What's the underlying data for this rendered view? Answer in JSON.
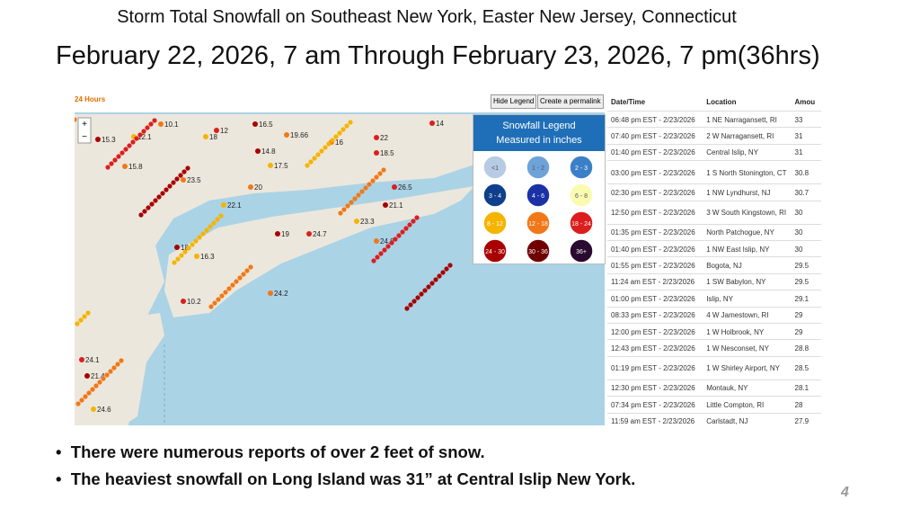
{
  "header": {
    "title": "Storm Total Snowfall on Southeast New York, Easter New Jersey, Connecticut",
    "subtitle": "February 22, 2026, 7 am Through February 23, 2026, 7 pm(36hrs)"
  },
  "map": {
    "period": "24 Hours",
    "buttons": [
      "Hide Legend",
      "Create a permalink"
    ],
    "zoom": [
      "+",
      "−"
    ],
    "labels": [
      "10.1",
      "12",
      "16.5",
      "18",
      "19.66",
      "14",
      "15.3",
      "12.1",
      "16",
      "22",
      "14.8",
      "17.5",
      "23.5",
      "26.5",
      "21.1",
      "23.3",
      "24.8",
      "24.7",
      "18",
      "16.3",
      "24.2",
      "24.1",
      "21.4",
      "24.6",
      "15.8",
      "10.2",
      "19",
      "22.1",
      "20",
      "18.5"
    ]
  },
  "legend": {
    "title": "Snowfall Legend",
    "subtitle": "Measured in inches",
    "items": [
      {
        "label": "<1",
        "color": "#b8cbe4"
      },
      {
        "label": "1 - 2",
        "color": "#6ea3d8"
      },
      {
        "label": "2 - 3",
        "color": "#3b80c6"
      },
      {
        "label": "3 - 4",
        "color": "#0e3f8c"
      },
      {
        "label": "4 - 6",
        "color": "#1a32a6"
      },
      {
        "label": "6 - 8",
        "color": "#fbfbb0"
      },
      {
        "label": "8 - 12",
        "color": "#f5b400"
      },
      {
        "label": "12 - 18",
        "color": "#f07818"
      },
      {
        "label": "18 - 24",
        "color": "#dc1e1e"
      },
      {
        "label": "24 - 30",
        "color": "#a80000"
      },
      {
        "label": "30 - 36",
        "color": "#700000"
      },
      {
        "label": "36+",
        "color": "#2a0a30"
      }
    ]
  },
  "table": {
    "columns": [
      "Date/Time",
      "Location",
      "Amou"
    ],
    "rows": [
      [
        "06:48 pm EST - 2/23/2026",
        "1 NE Narragansett, RI",
        "33"
      ],
      [
        "07:40 pm EST - 2/23/2026",
        "2 W Narragansett, RI",
        "31"
      ],
      [
        "01:40 pm EST - 2/23/2026",
        "Central Islip, NY",
        "31"
      ],
      [
        "03:00 pm EST - 2/23/2026",
        "1 S North Stonington, CT",
        "30.8"
      ],
      [
        "02:30 pm EST - 2/23/2026",
        "1 NW Lyndhurst, NJ",
        "30.7"
      ],
      [
        "12:50 pm EST - 2/23/2026",
        "3 W South Kingstown, RI",
        "30"
      ],
      [
        "01:35 pm EST - 2/23/2026",
        "North Patchogue, NY",
        "30"
      ],
      [
        "01:40 pm EST - 2/23/2026",
        "1 NW East Islip, NY",
        "30"
      ],
      [
        "01:55 pm EST - 2/23/2026",
        "Bogota, NJ",
        "29.5"
      ],
      [
        "11:24 am EST - 2/23/2026",
        "1 SW Babylon, NY",
        "29.5"
      ],
      [
        "01:00 pm EST - 2/23/2026",
        "Islip, NY",
        "29.1"
      ],
      [
        "08:33 pm EST - 2/23/2026",
        "4 W Jamestown, RI",
        "29"
      ],
      [
        "12:00 pm EST - 2/23/2026",
        "1 W Holbrook, NY",
        "29"
      ],
      [
        "12:43 pm EST - 2/23/2026",
        "1 W Nesconset, NY",
        "28.8"
      ],
      [
        "01:19 pm EST - 2/23/2026",
        "1 W Shirley Airport, NY",
        "28.5"
      ],
      [
        "12:30 pm EST - 2/23/2026",
        "Montauk, NY",
        "28.1"
      ],
      [
        "07:34 pm EST - 2/23/2026",
        "Little Compton, RI",
        "28"
      ],
      [
        "11:59 am EST - 2/23/2026",
        "Carlstadt, NJ",
        "27.9"
      ]
    ]
  },
  "bullets": [
    "There were numerous reports of over 2 feet of snow.",
    "The heaviest snowfall on Long Island was 31” at Central Islip New York."
  ],
  "page_number": "4"
}
